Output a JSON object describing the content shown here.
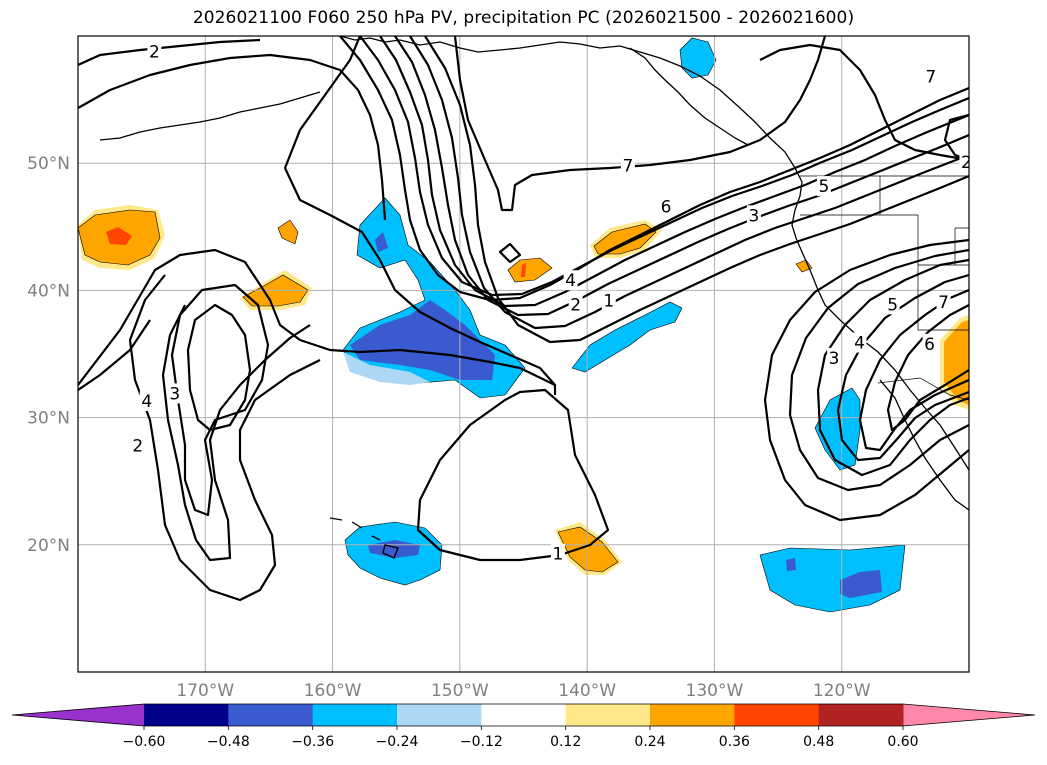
{
  "title": "2026021100 F060 250 hPa PV, precipitation PC (2026021500 - 2026021600)",
  "map": {
    "lon_range": [
      -180,
      -110
    ],
    "lat_range": [
      10,
      60
    ],
    "lat_ticks": [
      {
        "value": 20,
        "label": "20°N"
      },
      {
        "value": 30,
        "label": "30°N"
      },
      {
        "value": 40,
        "label": "40°N"
      },
      {
        "value": 50,
        "label": "50°N"
      }
    ],
    "lon_ticks": [
      {
        "value": -170,
        "label": "170°W"
      },
      {
        "value": -160,
        "label": "160°W"
      },
      {
        "value": -150,
        "label": "150°W"
      },
      {
        "value": -140,
        "label": "140°W"
      },
      {
        "value": -130,
        "label": "130°W"
      },
      {
        "value": -120,
        "label": "120°W"
      }
    ],
    "gridlines": true
  },
  "pv_contours": {
    "levels": [
      1,
      2,
      3,
      4,
      5,
      6,
      7
    ],
    "labels": [
      {
        "text": "2",
        "lon": -174,
        "lat": 58.8
      },
      {
        "text": "7",
        "lon": -136.8,
        "lat": 49.8
      },
      {
        "text": "6",
        "lon": -133.8,
        "lat": 46.6
      },
      {
        "text": "5",
        "lon": -121.4,
        "lat": 48.2
      },
      {
        "text": "3",
        "lon": -126.9,
        "lat": 45.9
      },
      {
        "text": "4",
        "lon": -141.3,
        "lat": 40.8
      },
      {
        "text": "2",
        "lon": -140.9,
        "lat": 38.9
      },
      {
        "text": "1",
        "lon": -138.3,
        "lat": 39.2
      },
      {
        "text": "7",
        "lon": -113,
        "lat": 56.8
      },
      {
        "text": "2",
        "lon": -110.2,
        "lat": 50.1
      },
      {
        "text": "5",
        "lon": -116,
        "lat": 38.9
      },
      {
        "text": "7",
        "lon": -112,
        "lat": 39.1
      },
      {
        "text": "6",
        "lon": -113.1,
        "lat": 35.8
      },
      {
        "text": "4",
        "lon": -118.6,
        "lat": 35.9
      },
      {
        "text": "3",
        "lon": -120.6,
        "lat": 34.7
      },
      {
        "text": "4",
        "lon": -174.6,
        "lat": 31.3
      },
      {
        "text": "3",
        "lon": -172.4,
        "lat": 31.9
      },
      {
        "text": "2",
        "lon": -175.3,
        "lat": 27.8
      },
      {
        "text": "1",
        "lon": -142.3,
        "lat": 19.3
      }
    ]
  },
  "precip_pc": {
    "colorbar": {
      "levels": [
        -0.6,
        -0.48,
        -0.36,
        -0.24,
        -0.12,
        0.12,
        0.24,
        0.36,
        0.48,
        0.6
      ],
      "tick_labels": [
        "−0.60",
        "−0.48",
        "−0.36",
        "−0.24",
        "−0.12",
        "0.12",
        "0.24",
        "0.36",
        "0.48",
        "0.60"
      ],
      "colors": [
        "#9932cc",
        "#00008b",
        "#3a5bcf",
        "#00bfff",
        "#add8f5",
        "#ffffff",
        "#ffe88a",
        "#ffa500",
        "#ff4500",
        "#b22222",
        "#ff88aa"
      ],
      "extend": "both"
    }
  }
}
